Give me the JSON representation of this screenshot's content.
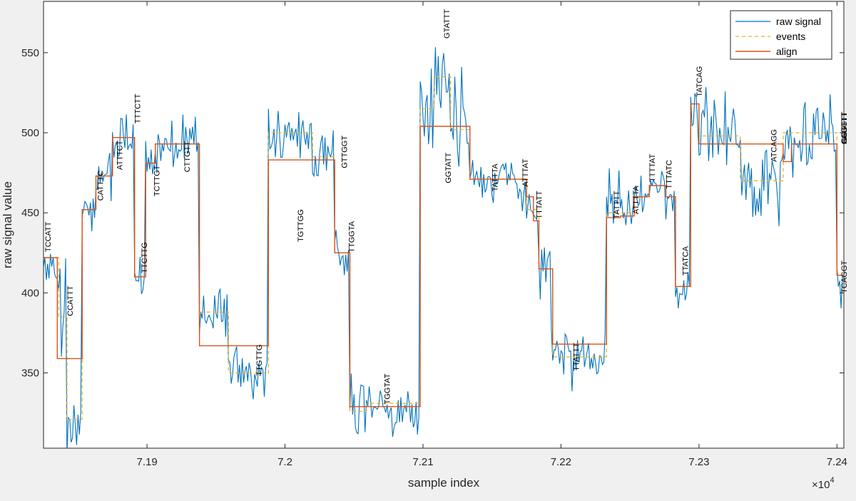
{
  "chart_data": {
    "type": "line",
    "xlabel": "sample index",
    "ylabel": "raw signal value",
    "x_exponent_label": "×10",
    "x_exponent_power": "4",
    "xlim": [
      71825,
      72405
    ],
    "ylim": [
      303,
      582
    ],
    "x_ticks": [
      71900,
      72000,
      72100,
      72200,
      72300,
      72400
    ],
    "x_tick_labels": [
      "7.19",
      "7.2",
      "7.21",
      "7.22",
      "7.23",
      "7.24"
    ],
    "y_ticks": [
      350,
      400,
      450,
      500,
      550
    ],
    "y_tick_labels": [
      "350",
      "400",
      "450",
      "500",
      "550"
    ],
    "grid": false,
    "legend_position": "top-right",
    "legend": [
      {
        "label": "raw signal",
        "color": "#0072bd",
        "style": "solid"
      },
      {
        "label": "events",
        "color": "#edb120",
        "style": "dashed"
      },
      {
        "label": "align",
        "color": "#d95319",
        "style": "solid"
      }
    ],
    "colors": {
      "raw": "#0072bd",
      "events": "#edb120",
      "align": "#d95319"
    },
    "align_steps": [
      {
        "x0": 71825,
        "x1": 71835,
        "y": 422
      },
      {
        "x0": 71835,
        "x1": 71853,
        "y": 359
      },
      {
        "x0": 71853,
        "x1": 71863,
        "y": 452
      },
      {
        "x0": 71863,
        "x1": 71875,
        "y": 473
      },
      {
        "x0": 71875,
        "x1": 71891,
        "y": 497
      },
      {
        "x0": 71891,
        "x1": 71899,
        "y": 410
      },
      {
        "x0": 71899,
        "x1": 71906,
        "y": 481
      },
      {
        "x0": 71906,
        "x1": 71938,
        "y": 493
      },
      {
        "x0": 71938,
        "x1": 71988,
        "y": 367
      },
      {
        "x0": 71988,
        "x1": 72036,
        "y": 483
      },
      {
        "x0": 72036,
        "x1": 72047,
        "y": 425
      },
      {
        "x0": 72047,
        "x1": 72098,
        "y": 329
      },
      {
        "x0": 72098,
        "x1": 72134,
        "y": 504
      },
      {
        "x0": 72134,
        "x1": 72175,
        "y": 471
      },
      {
        "x0": 72175,
        "x1": 72180,
        "y": 460
      },
      {
        "x0": 72180,
        "x1": 72184,
        "y": 445
      },
      {
        "x0": 72184,
        "x1": 72194,
        "y": 415
      },
      {
        "x0": 72194,
        "x1": 72233,
        "y": 368
      },
      {
        "x0": 72233,
        "x1": 72243,
        "y": 447
      },
      {
        "x0": 72243,
        "x1": 72253,
        "y": 448
      },
      {
        "x0": 72253,
        "x1": 72264,
        "y": 460
      },
      {
        "x0": 72264,
        "x1": 72276,
        "y": 467
      },
      {
        "x0": 72276,
        "x1": 72283,
        "y": 460
      },
      {
        "x0": 72283,
        "x1": 72294,
        "y": 404
      },
      {
        "x0": 72294,
        "x1": 72300,
        "y": 518
      },
      {
        "x0": 72300,
        "x1": 72361,
        "y": 493
      },
      {
        "x0": 72361,
        "x1": 72367,
        "y": 482
      },
      {
        "x0": 72367,
        "x1": 72400,
        "y": 493
      },
      {
        "x0": 72400,
        "x1": 72405,
        "y": 411
      }
    ],
    "event_steps": [
      {
        "x0": 71825,
        "x1": 71836,
        "y": 422
      },
      {
        "x0": 71836,
        "x1": 71842,
        "y": 385
      },
      {
        "x0": 71842,
        "x1": 71853,
        "y": 321
      },
      {
        "x0": 71853,
        "x1": 71863,
        "y": 452
      },
      {
        "x0": 71863,
        "x1": 71875,
        "y": 473
      },
      {
        "x0": 71875,
        "x1": 71891,
        "y": 497
      },
      {
        "x0": 71891,
        "x1": 71899,
        "y": 410
      },
      {
        "x0": 71899,
        "x1": 71906,
        "y": 481
      },
      {
        "x0": 71906,
        "x1": 71938,
        "y": 493
      },
      {
        "x0": 71938,
        "x1": 71959,
        "y": 388
      },
      {
        "x0": 71959,
        "x1": 71988,
        "y": 350
      },
      {
        "x0": 71988,
        "x1": 72020,
        "y": 500
      },
      {
        "x0": 72020,
        "x1": 72036,
        "y": 485
      },
      {
        "x0": 72036,
        "x1": 72047,
        "y": 425
      },
      {
        "x0": 72047,
        "x1": 72059,
        "y": 326
      },
      {
        "x0": 72059,
        "x1": 72098,
        "y": 331
      },
      {
        "x0": 72098,
        "x1": 72108,
        "y": 515
      },
      {
        "x0": 72108,
        "x1": 72120,
        "y": 535
      },
      {
        "x0": 72120,
        "x1": 72134,
        "y": 502
      },
      {
        "x0": 72134,
        "x1": 72175,
        "y": 471
      },
      {
        "x0": 72175,
        "x1": 72184,
        "y": 452
      },
      {
        "x0": 72184,
        "x1": 72194,
        "y": 415
      },
      {
        "x0": 72194,
        "x1": 72233,
        "y": 360
      },
      {
        "x0": 72233,
        "x1": 72253,
        "y": 450
      },
      {
        "x0": 72253,
        "x1": 72264,
        "y": 460
      },
      {
        "x0": 72264,
        "x1": 72276,
        "y": 467
      },
      {
        "x0": 72276,
        "x1": 72283,
        "y": 460
      },
      {
        "x0": 72283,
        "x1": 72294,
        "y": 404
      },
      {
        "x0": 72294,
        "x1": 72300,
        "y": 518
      },
      {
        "x0": 72300,
        "x1": 72330,
        "y": 498
      },
      {
        "x0": 72330,
        "x1": 72361,
        "y": 470
      },
      {
        "x0": 72361,
        "x1": 72400,
        "y": 500
      },
      {
        "x0": 72400,
        "x1": 72405,
        "y": 411
      }
    ],
    "raw_segments": [
      {
        "x0": 71825,
        "x1": 71836,
        "mean": 418,
        "amp": 9
      },
      {
        "x0": 71836,
        "x1": 71842,
        "mean": 392,
        "amp": 14
      },
      {
        "x0": 71842,
        "x1": 71853,
        "mean": 318,
        "amp": 9
      },
      {
        "x0": 71853,
        "x1": 71863,
        "mean": 452,
        "amp": 6
      },
      {
        "x0": 71863,
        "x1": 71875,
        "mean": 473,
        "amp": 7
      },
      {
        "x0": 71875,
        "x1": 71891,
        "mean": 497,
        "amp": 8
      },
      {
        "x0": 71891,
        "x1": 71899,
        "mean": 410,
        "amp": 7
      },
      {
        "x0": 71899,
        "x1": 71906,
        "mean": 481,
        "amp": 7
      },
      {
        "x0": 71906,
        "x1": 71938,
        "mean": 494,
        "amp": 8
      },
      {
        "x0": 71938,
        "x1": 71959,
        "mean": 388,
        "amp": 9
      },
      {
        "x0": 71959,
        "x1": 71988,
        "mean": 350,
        "amp": 9
      },
      {
        "x0": 71988,
        "x1": 72020,
        "mean": 500,
        "amp": 8
      },
      {
        "x0": 72020,
        "x1": 72036,
        "mean": 485,
        "amp": 10
      },
      {
        "x0": 72036,
        "x1": 72047,
        "mean": 428,
        "amp": 9
      },
      {
        "x0": 72047,
        "x1": 72059,
        "mean": 330,
        "amp": 12
      },
      {
        "x0": 72059,
        "x1": 72098,
        "mean": 328,
        "amp": 7
      },
      {
        "x0": 72098,
        "x1": 72108,
        "mean": 520,
        "amp": 18
      },
      {
        "x0": 72108,
        "x1": 72120,
        "mean": 528,
        "amp": 16
      },
      {
        "x0": 72120,
        "x1": 72134,
        "mean": 502,
        "amp": 14
      },
      {
        "x0": 72134,
        "x1": 72175,
        "mean": 470,
        "amp": 8
      },
      {
        "x0": 72175,
        "x1": 72184,
        "mean": 452,
        "amp": 8
      },
      {
        "x0": 72184,
        "x1": 72194,
        "mean": 412,
        "amp": 14
      },
      {
        "x0": 72194,
        "x1": 72233,
        "mean": 360,
        "amp": 8
      },
      {
        "x0": 72233,
        "x1": 72253,
        "mean": 452,
        "amp": 10
      },
      {
        "x0": 72253,
        "x1": 72264,
        "mean": 460,
        "amp": 7
      },
      {
        "x0": 72264,
        "x1": 72276,
        "mean": 467,
        "amp": 6
      },
      {
        "x0": 72276,
        "x1": 72283,
        "mean": 460,
        "amp": 6
      },
      {
        "x0": 72283,
        "x1": 72294,
        "mean": 402,
        "amp": 6
      },
      {
        "x0": 72294,
        "x1": 72300,
        "mean": 515,
        "amp": 8
      },
      {
        "x0": 72300,
        "x1": 72330,
        "mean": 497,
        "amp": 13
      },
      {
        "x0": 72330,
        "x1": 72361,
        "mean": 470,
        "amp": 13
      },
      {
        "x0": 72361,
        "x1": 72400,
        "mean": 500,
        "amp": 11
      },
      {
        "x0": 72400,
        "x1": 72405,
        "mean": 410,
        "amp": 9
      }
    ],
    "annotations": [
      {
        "text": "TCCATT",
        "x": 71828,
        "y": 435
      },
      {
        "text": "CCATTT",
        "x": 71844,
        "y": 395
      },
      {
        "text": "CATTTC",
        "x": 71866,
        "y": 467
      },
      {
        "text": "ATTTCT",
        "x": 71880,
        "y": 486
      },
      {
        "text": "TTTCTT",
        "x": 71893,
        "y": 515
      },
      {
        "text": "TTCTTG",
        "x": 71898,
        "y": 422
      },
      {
        "text": "TCTTGT",
        "x": 71907,
        "y": 470
      },
      {
        "text": "CTTGTT",
        "x": 71929,
        "y": 485
      },
      {
        "text": "TTGTTG",
        "x": 71981,
        "y": 358
      },
      {
        "text": "TGTTGG",
        "x": 72011,
        "y": 442
      },
      {
        "text": "GTTGGT",
        "x": 72043,
        "y": 488
      },
      {
        "text": "TTGGTA",
        "x": 72048,
        "y": 435
      },
      {
        "text": "TGGTAT",
        "x": 72074,
        "y": 340
      },
      {
        "text": "GTATTT",
        "x": 72117,
        "y": 568
      },
      {
        "text": "GGTATT",
        "x": 72118,
        "y": 478
      },
      {
        "text": "TATTTA",
        "x": 72152,
        "y": 472
      },
      {
        "text": "ATTTAT",
        "x": 72174,
        "y": 475
      },
      {
        "text": "TTTATT",
        "x": 72184,
        "y": 455
      },
      {
        "text": "TTATTT",
        "x": 72211,
        "y": 360
      },
      {
        "text": "TATTTT",
        "x": 72240,
        "y": 455
      },
      {
        "text": "ATTTTA",
        "x": 72254,
        "y": 458
      },
      {
        "text": "TTTTAT",
        "x": 72266,
        "y": 478
      },
      {
        "text": "TTTATC",
        "x": 72278,
        "y": 474
      },
      {
        "text": "TTATCA",
        "x": 72290,
        "y": 420
      },
      {
        "text": "TATCAG",
        "x": 72300,
        "y": 532
      },
      {
        "text": "ATCAGG",
        "x": 72354,
        "y": 492
      },
      {
        "text": "TCAGGT",
        "x": 72405,
        "y": 410
      },
      {
        "text": "CAGGTT",
        "x": 72405,
        "y": 503
      },
      {
        "text": "AGGTTT",
        "x": 72405,
        "y": 503
      },
      {
        "text": "GGTTTT",
        "x": 72405,
        "y": 503
      }
    ]
  }
}
